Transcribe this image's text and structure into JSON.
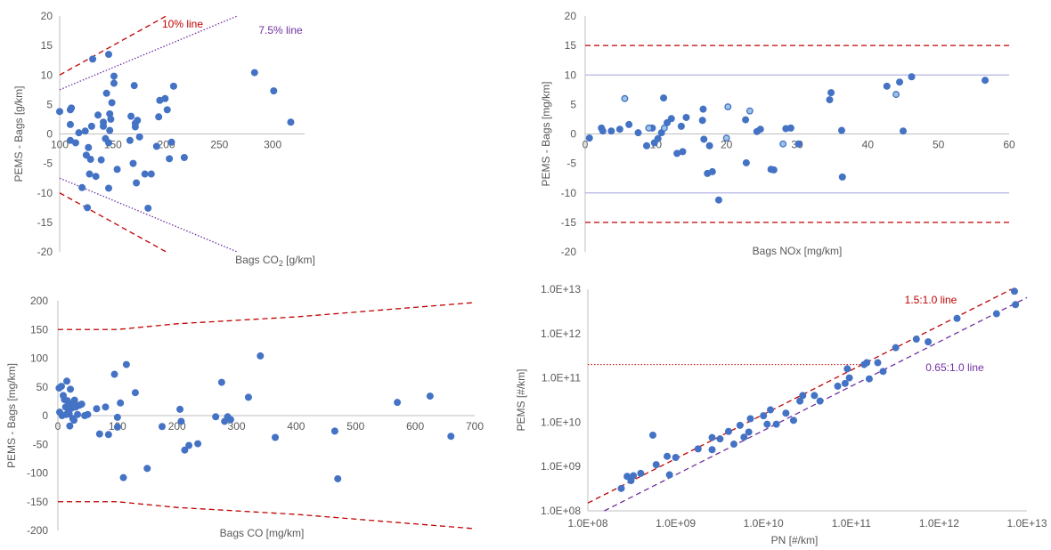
{
  "chart_data": [
    {
      "type": "scatter",
      "xlabel_main": "Bags CO",
      "xlabel_sub": "2",
      "xlabel_unit": " [g/km]",
      "ylabel": "PEMS - Bags [g/km]",
      "xlim": [
        100,
        330
      ],
      "ylim": [
        -20,
        20
      ],
      "xticks": [
        "100",
        "150",
        "200",
        "250",
        "300"
      ],
      "yticks": [
        "20",
        "15",
        "10",
        "5",
        "0",
        "-5",
        "-10",
        "-15",
        "-20"
      ],
      "marker_color": "#4472c4",
      "lines": [
        {
          "label": "10% line",
          "color": "#c00000",
          "dash": "dashed",
          "points": [
            [
              100,
              10
            ],
            [
              200,
              20
            ]
          ]
        },
        {
          "label": "",
          "color": "#c00000",
          "dash": "dashed",
          "points": [
            [
              100,
              -10
            ],
            [
              200,
              -20
            ]
          ]
        },
        {
          "label": "7.5% line",
          "color": "#7030a0",
          "dash": "dotted",
          "points": [
            [
              100,
              7.5
            ],
            [
              266.7,
              20
            ]
          ]
        },
        {
          "label": "",
          "color": "#7030a0",
          "dash": "dotted",
          "points": [
            [
              100,
              -7.5
            ],
            [
              266.7,
              -20
            ]
          ]
        }
      ],
      "points": [
        [
          100,
          3.8
        ],
        [
          110,
          4.1
        ],
        [
          111,
          4.4
        ],
        [
          110,
          1.6
        ],
        [
          110,
          -1.1
        ],
        [
          115,
          -1.5
        ],
        [
          118,
          0.2
        ],
        [
          121,
          -9.1
        ],
        [
          124,
          0.5
        ],
        [
          125,
          -3.6
        ],
        [
          126,
          -12.5
        ],
        [
          127,
          -2.3
        ],
        [
          128,
          -6.8
        ],
        [
          129,
          -4.3
        ],
        [
          130,
          1.3
        ],
        [
          131,
          12.7
        ],
        [
          134,
          -7.2
        ],
        [
          136,
          3.2
        ],
        [
          139,
          -4.4
        ],
        [
          141,
          2.0
        ],
        [
          141,
          1.3
        ],
        [
          143,
          -0.8
        ],
        [
          144,
          6.9
        ],
        [
          146,
          -1.5
        ],
        [
          146,
          -9.2
        ],
        [
          146,
          13.5
        ],
        [
          147,
          3.4
        ],
        [
          147,
          0.6
        ],
        [
          148,
          2.5
        ],
        [
          149,
          5.3
        ],
        [
          151,
          9.8
        ],
        [
          151,
          8.6
        ],
        [
          154,
          -6.0
        ],
        [
          166,
          -1.1
        ],
        [
          167,
          3.0
        ],
        [
          169,
          -5.0
        ],
        [
          170,
          8.2
        ],
        [
          171,
          1.8
        ],
        [
          171,
          1.2
        ],
        [
          172,
          -8.3
        ],
        [
          173,
          2.3
        ],
        [
          175,
          -0.5
        ],
        [
          180,
          -6.8
        ],
        [
          183,
          -12.6
        ],
        [
          186,
          -6.8
        ],
        [
          191,
          -2.1
        ],
        [
          193,
          2.9
        ],
        [
          194,
          5.7
        ],
        [
          199,
          6.0
        ],
        [
          201,
          4.1
        ],
        [
          203,
          -4.2
        ],
        [
          205,
          -1.4
        ],
        [
          207,
          8.1
        ],
        [
          217,
          -4.0
        ],
        [
          283,
          10.4
        ],
        [
          301,
          7.3
        ],
        [
          317,
          2.0
        ]
      ]
    },
    {
      "type": "scatter",
      "xlabel": "Bags NOx [mg/km]",
      "ylabel": "PEMS - Bags [mg/km]",
      "xlim": [
        0,
        60
      ],
      "ylim": [
        -20,
        20
      ],
      "xticks": [
        "0",
        "10",
        "20",
        "30",
        "40",
        "50",
        "60"
      ],
      "yticks": [
        "20",
        "15",
        "10",
        "5",
        "0",
        "-5",
        "-10",
        "-15",
        "-20"
      ],
      "marker_color": "#4472c4",
      "light_marker_color": "#9dc3e6",
      "hlines": [
        {
          "y": 15,
          "color": "#c00000",
          "dash": "dashed"
        },
        {
          "y": -15,
          "color": "#c00000",
          "dash": "dashed"
        },
        {
          "y": 10,
          "color": "#b4b4e6",
          "dash": "solid"
        },
        {
          "y": -10,
          "color": "#b4b4e6",
          "dash": "solid"
        }
      ],
      "points": [
        [
          0.6,
          -0.7
        ],
        [
          2.5,
          0.5
        ],
        [
          2.3,
          1.0
        ],
        [
          3.7,
          0.5
        ],
        [
          4.9,
          0.8
        ],
        [
          6.2,
          1.6
        ],
        [
          7.5,
          0.2
        ],
        [
          8.7,
          -2.0
        ],
        [
          9.5,
          1.0
        ],
        [
          9.8,
          -1.5
        ],
        [
          10.3,
          -0.8
        ],
        [
          10.8,
          0.2
        ],
        [
          11.1,
          6.1
        ],
        [
          11.6,
          1.9
        ],
        [
          12.2,
          2.6
        ],
        [
          13.0,
          -3.3
        ],
        [
          13.6,
          1.3
        ],
        [
          13.8,
          -3.0
        ],
        [
          14.3,
          2.8
        ],
        [
          16.6,
          2.3
        ],
        [
          16.7,
          4.2
        ],
        [
          16.8,
          -0.9
        ],
        [
          17.3,
          -6.7
        ],
        [
          17.6,
          -2.0
        ],
        [
          18.0,
          -6.4
        ],
        [
          18.9,
          -11.2
        ],
        [
          22.7,
          2.4
        ],
        [
          22.8,
          -4.9
        ],
        [
          24.3,
          0.4
        ],
        [
          24.8,
          0.8
        ],
        [
          26.3,
          -6.0
        ],
        [
          26.7,
          -6.1
        ],
        [
          28.4,
          0.9
        ],
        [
          29.1,
          1.0
        ],
        [
          30.2,
          -1.7
        ],
        [
          34.6,
          5.8
        ],
        [
          34.8,
          7.0
        ],
        [
          36.3,
          0.6
        ],
        [
          36.4,
          -7.3
        ],
        [
          42.7,
          8.1
        ],
        [
          44.5,
          8.8
        ],
        [
          45.0,
          0.5
        ],
        [
          46.2,
          9.7
        ],
        [
          56.6,
          9.1
        ]
      ],
      "light_points": [
        [
          5.6,
          6.0
        ],
        [
          11.2,
          1.0
        ],
        [
          20.2,
          4.6
        ],
        [
          20.0,
          -0.7
        ],
        [
          23.3,
          3.9
        ],
        [
          28.0,
          -1.7
        ],
        [
          44.0,
          6.7
        ],
        [
          9.0,
          1.0
        ]
      ]
    },
    {
      "type": "scatter",
      "xlabel": "Bags CO [mg/km]",
      "ylabel": "PEMS - Bags [mg/km]",
      "xlim": [
        0,
        700
      ],
      "ylim": [
        -200,
        200
      ],
      "xticks": [
        "0",
        "100",
        "200",
        "300",
        "400",
        "500",
        "600",
        "700"
      ],
      "yticks": [
        "200",
        "150",
        "100",
        "50",
        "0",
        "-50",
        "-100",
        "-150",
        "-200"
      ],
      "marker_color": "#4472c4",
      "lines": [
        {
          "color": "#c00000",
          "dash": "dashed",
          "points": [
            [
              0,
              150
            ],
            [
              100,
              150
            ],
            [
              200,
              160
            ],
            [
              400,
              172
            ],
            [
              700,
              197
            ]
          ]
        },
        {
          "color": "#c00000",
          "dash": "dashed",
          "points": [
            [
              0,
              -150
            ],
            [
              100,
              -150
            ],
            [
              200,
              -160
            ],
            [
              400,
              -172
            ],
            [
              700,
              -197
            ]
          ]
        }
      ],
      "points": [
        [
          2,
          48
        ],
        [
          3,
          6
        ],
        [
          6,
          51
        ],
        [
          7,
          0
        ],
        [
          9,
          35
        ],
        [
          11,
          28
        ],
        [
          13,
          15
        ],
        [
          14,
          2
        ],
        [
          15,
          60
        ],
        [
          16,
          26
        ],
        [
          18,
          8
        ],
        [
          19,
          3
        ],
        [
          20,
          -18
        ],
        [
          21,
          46
        ],
        [
          22,
          20
        ],
        [
          23,
          13
        ],
        [
          25,
          -5
        ],
        [
          26,
          22
        ],
        [
          27,
          -8
        ],
        [
          28,
          27
        ],
        [
          30,
          15
        ],
        [
          33,
          2
        ],
        [
          36,
          18
        ],
        [
          40,
          20
        ],
        [
          45,
          0
        ],
        [
          50,
          2
        ],
        [
          65,
          12
        ],
        [
          70,
          -32
        ],
        [
          80,
          15
        ],
        [
          85,
          -33
        ],
        [
          95,
          72
        ],
        [
          100,
          -3
        ],
        [
          100,
          -20
        ],
        [
          105,
          22
        ],
        [
          110,
          -108
        ],
        [
          115,
          89
        ],
        [
          130,
          40
        ],
        [
          150,
          -92
        ],
        [
          175,
          -19
        ],
        [
          205,
          11
        ],
        [
          207,
          -10
        ],
        [
          213,
          -60
        ],
        [
          220,
          -52
        ],
        [
          235,
          -49
        ],
        [
          265,
          -2
        ],
        [
          275,
          58
        ],
        [
          280,
          -10
        ],
        [
          285,
          -2
        ],
        [
          290,
          -7
        ],
        [
          320,
          32
        ],
        [
          340,
          104
        ],
        [
          365,
          -38
        ],
        [
          465,
          -27
        ],
        [
          470,
          -110
        ],
        [
          570,
          23
        ],
        [
          625,
          34
        ],
        [
          660,
          -36
        ]
      ]
    },
    {
      "type": "scatter",
      "xscale": "log",
      "yscale": "log",
      "xlabel": "PN [#/km]",
      "ylabel": "PEMS [#/km]",
      "xlim": [
        100000000.0,
        10000000000000.0
      ],
      "ylim": [
        100000000.0,
        10000000000000.0
      ],
      "xticks": [
        "1.0E+08",
        "1.0E+09",
        "1.0E+10",
        "1.0E+11",
        "1.0E+12",
        "1.0E+13"
      ],
      "yticks": [
        "1.0E+13",
        "1.0E+12",
        "1.0E+11",
        "1.0E+10",
        "1.0E+09",
        "1.0E+08"
      ],
      "marker_color": "#4472c4",
      "lines": [
        {
          "label": "1.5:1.0 line",
          "color": "#c00000",
          "dash": "dashed",
          "ratio": 1.5
        },
        {
          "label": "0.65:1.0 line",
          "color": "#7030a0",
          "dash": "dashed",
          "ratio": 0.65
        }
      ],
      "guide": {
        "color": "#c00000",
        "dash": "dotted",
        "y": 200000000000.0,
        "x_to": 135000000000.0
      },
      "points": [
        [
          240000000.0,
          320000000.0
        ],
        [
          280000000.0,
          600000000.0
        ],
        [
          310000000.0,
          550000000.0
        ],
        [
          330000000.0,
          620000000.0
        ],
        [
          310000000.0,
          480000000.0
        ],
        [
          400000000.0,
          700000000.0
        ],
        [
          550000000.0,
          5100000000.0
        ],
        [
          600000000.0,
          1100000000.0
        ],
        [
          800000000.0,
          1700000000.0
        ],
        [
          1000000000.0,
          1600000000.0
        ],
        [
          850000000.0,
          650000000.0
        ],
        [
          1800000000.0,
          2500000000.0
        ],
        [
          2600000000.0,
          2400000000.0
        ],
        [
          3200000000.0,
          4200000000.0
        ],
        [
          2600000000.0,
          4500000000.0
        ],
        [
          4000000000.0,
          6200000000.0
        ],
        [
          4600000000.0,
          3200000000.0
        ],
        [
          5400000000.0,
          8500000000.0
        ],
        [
          6000000000.0,
          4600000000.0
        ],
        [
          6800000000.0,
          6000000000.0
        ],
        [
          7100000000.0,
          12000000000.0
        ],
        [
          10000000000.0,
          14000000000.0
        ],
        [
          11000000000.0,
          9000000000.0
        ],
        [
          12000000000.0,
          19000000000.0
        ],
        [
          14000000000.0,
          9000000000.0
        ],
        [
          18000000000.0,
          16000000000.0
        ],
        [
          22000000000.0,
          11000000000.0
        ],
        [
          26000000000.0,
          30000000000.0
        ],
        [
          28000000000.0,
          40000000000.0
        ],
        [
          38000000000.0,
          40000000000.0
        ],
        [
          44000000000.0,
          30000000000.0
        ],
        [
          70000000000.0,
          65000000000.0
        ],
        [
          85000000000.0,
          75000000000.0
        ],
        [
          90000000000.0,
          160000000000.0
        ],
        [
          95000000000.0,
          100000000000.0
        ],
        [
          140000000000.0,
          200000000000.0
        ],
        [
          150000000000.0,
          220000000000.0
        ],
        [
          160000000000.0,
          95000000000.0
        ],
        [
          200000000000.0,
          220000000000.0
        ],
        [
          230000000000.0,
          140000000000.0
        ],
        [
          320000000000.0,
          480000000000.0
        ],
        [
          550000000000.0,
          750000000000.0
        ],
        [
          750000000000.0,
          650000000000.0
        ],
        [
          1600000000000.0,
          2200000000000.0
        ],
        [
          4500000000000.0,
          2800000000000.0
        ],
        [
          7200000000000.0,
          9000000000000.0
        ],
        [
          7400000000000.0,
          4500000000000.0
        ]
      ]
    }
  ]
}
